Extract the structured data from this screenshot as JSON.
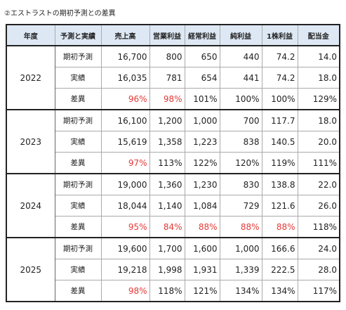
{
  "title": "②エストラストの期初予測との差異",
  "red_color": "#e53935",
  "header": [
    "年度",
    "予測と実績",
    "売上高",
    "営業利益",
    "経常利益",
    "純利益",
    "1株利益",
    "配当金"
  ],
  "groups": [
    {
      "year": "2022",
      "rows": [
        {
          "label": "期初予測",
          "cells": [
            "16,700",
            "800",
            "650",
            "440",
            "74.2",
            "14.0"
          ],
          "red": []
        },
        {
          "label": "実績",
          "cells": [
            "16,035",
            "781",
            "654",
            "441",
            "74.2",
            "18.0"
          ],
          "red": []
        },
        {
          "label": "差異",
          "cells": [
            "96%",
            "98%",
            "101%",
            "100%",
            "100%",
            "129%"
          ],
          "red": [
            0,
            1
          ]
        }
      ]
    },
    {
      "year": "2023",
      "rows": [
        {
          "label": "期初予測",
          "cells": [
            "16,100",
            "1,200",
            "1,000",
            "700",
            "117.7",
            "18.0"
          ],
          "red": []
        },
        {
          "label": "実績",
          "cells": [
            "15,619",
            "1,358",
            "1,223",
            "838",
            "140.5",
            "20.0"
          ],
          "red": []
        },
        {
          "label": "差異",
          "cells": [
            "97%",
            "113%",
            "122%",
            "120%",
            "119%",
            "111%"
          ],
          "red": [
            0
          ]
        }
      ]
    },
    {
      "year": "2024",
      "rows": [
        {
          "label": "期初予測",
          "cells": [
            "19,000",
            "1,360",
            "1,230",
            "830",
            "138.8",
            "22.0"
          ],
          "red": []
        },
        {
          "label": "実績",
          "cells": [
            "18,044",
            "1,140",
            "1,084",
            "729",
            "121.6",
            "26.0"
          ],
          "red": []
        },
        {
          "label": "差異",
          "cells": [
            "95%",
            "84%",
            "88%",
            "88%",
            "88%",
            "118%"
          ],
          "red": [
            0,
            1,
            2,
            3,
            4
          ]
        }
      ]
    },
    {
      "year": "2025",
      "rows": [
        {
          "label": "期初予測",
          "cells": [
            "19,600",
            "1,700",
            "1,600",
            "1,000",
            "166.6",
            "24.0"
          ],
          "red": []
        },
        {
          "label": "実績",
          "cells": [
            "19,218",
            "1,998",
            "1,931",
            "1,339",
            "222.5",
            "28.0"
          ],
          "red": []
        },
        {
          "label": "差異",
          "cells": [
            "98%",
            "118%",
            "121%",
            "134%",
            "134%",
            "117%"
          ],
          "red": [
            0
          ]
        }
      ]
    }
  ]
}
